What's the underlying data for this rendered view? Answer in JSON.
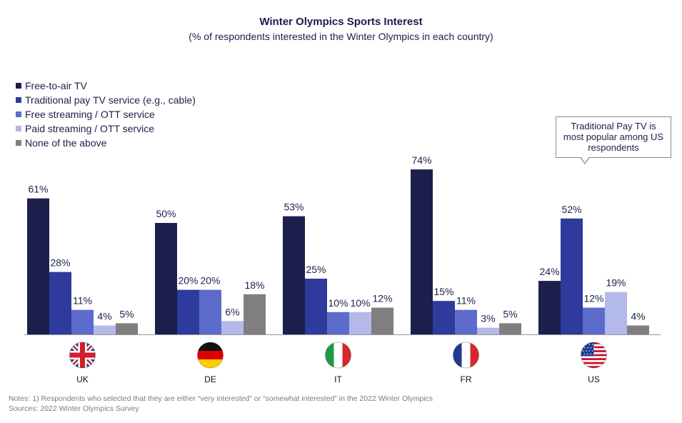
{
  "chart_data": {
    "type": "bar",
    "title": "Winter Olympics Sports Interest",
    "subtitle": "(% of respondents interested in the Winter Olympics in each country)",
    "categories": [
      "UK",
      "DE",
      "IT",
      "FR",
      "US"
    ],
    "flags": [
      "uk-flag",
      "germany-flag",
      "italy-flag",
      "france-flag",
      "us-flag"
    ],
    "series": [
      {
        "name": "Free-to-air TV",
        "color": "#1a1f4b",
        "values": [
          61,
          50,
          53,
          74,
          24
        ]
      },
      {
        "name": "Traditional pay TV service (e.g., cable)",
        "color": "#2e3a9c",
        "values": [
          28,
          20,
          25,
          15,
          52
        ]
      },
      {
        "name": "Free streaming / OTT service",
        "color": "#5c6bcc",
        "values": [
          11,
          20,
          10,
          11,
          12
        ]
      },
      {
        "name": "Paid streaming / OTT service",
        "color": "#b3b9e8",
        "values": [
          4,
          6,
          10,
          3,
          19
        ]
      },
      {
        "name": "None of the above",
        "color": "#7f7f7f",
        "values": [
          5,
          18,
          12,
          5,
          4
        ]
      }
    ],
    "value_suffix": "%",
    "ylim": [
      0,
      80
    ],
    "grid": false,
    "legend_position": "top-left"
  },
  "annotation": {
    "lines": [
      "Traditional Pay TV is",
      "most popular among US",
      "respondents"
    ]
  },
  "notes": {
    "line1": "Notes: 1) Respondents who selected that they are either “very interested” or “somewhat interested” in the 2022 Winter Olympics",
    "line2": "Sources: 2022 Winter Olympics Survey"
  }
}
